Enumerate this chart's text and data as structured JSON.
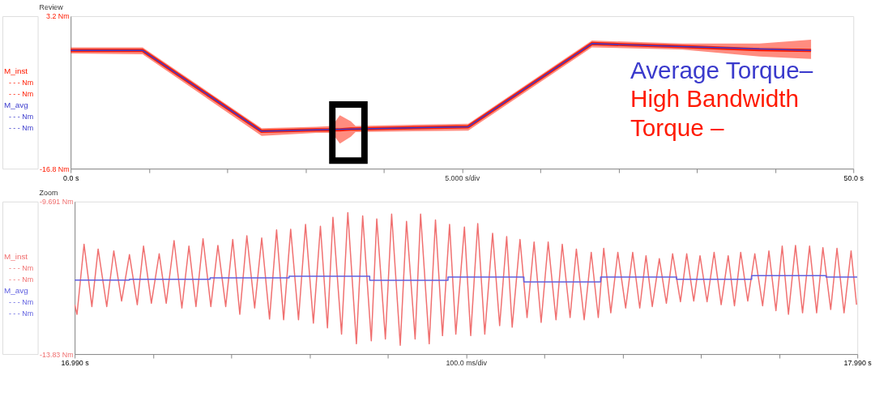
{
  "chart_data": [
    {
      "type": "line",
      "title": "Review",
      "legend": "left",
      "xlim": [
        0,
        50
      ],
      "ylim": [
        -16.8,
        3.2
      ],
      "xticks": [
        {
          "value": 0,
          "label": "0.0 s"
        },
        {
          "value": 5,
          "label": null
        },
        {
          "value": 10,
          "label": null
        },
        {
          "value": 15,
          "label": null
        },
        {
          "value": 20,
          "label": null
        },
        {
          "value": 25,
          "label": null
        },
        {
          "value": 30,
          "label": null
        },
        {
          "value": 35,
          "label": null
        },
        {
          "value": 40,
          "label": null
        },
        {
          "value": 45,
          "label": null
        },
        {
          "value": 50,
          "label": "50.0 s"
        }
      ],
      "yticks": [
        {
          "value": 3.2,
          "label": "3.2 Nm"
        },
        {
          "value": -16.8,
          "label": "-16.8 Nm"
        }
      ],
      "annotations": [
        "5.000 s/div",
        "- - - Nm",
        "- - - Nm",
        "- - - Nm",
        "- - - Nm",
        "Average Torque–",
        "High Bandwidth Torque –"
      ],
      "series": [
        {
          "name": "M_inst",
          "color": "#ff1a00",
          "x": [
            0,
            4.6,
            12.2,
            15.7,
            16.7,
            17.2,
            17.9,
            18.2,
            25.4,
            33.3,
            39.1,
            44.0,
            47.3
          ],
          "values": [
            -1.3,
            -1.3,
            -11.9,
            -11.7,
            -11.7,
            -11.7,
            -11.6,
            -11.6,
            -11.3,
            -0.4,
            -0.8,
            -1.2,
            -1.3
          ],
          "upper": [
            -0.9,
            -0.9,
            -11.5,
            -11.3,
            -11.2,
            -9.8,
            -10.6,
            -11.2,
            -10.9,
            0.0,
            -0.4,
            -0.4,
            0.1
          ],
          "lower": [
            -1.7,
            -1.8,
            -12.5,
            -12.1,
            -12.1,
            -13.5,
            -12.6,
            -12.0,
            -11.8,
            -0.9,
            -1.2,
            -2.1,
            -2.4
          ]
        },
        {
          "name": "M_avg",
          "color": "#3a3acc",
          "x": [
            0,
            4.6,
            12.2,
            15.7,
            25.4,
            33.3,
            39.1,
            47.3
          ],
          "values": [
            -1.3,
            -1.3,
            -11.9,
            -11.7,
            -11.3,
            -0.4,
            -0.8,
            -1.3
          ]
        }
      ]
    },
    {
      "type": "line",
      "title": "Zoom",
      "legend": "left",
      "xlim": [
        16.99,
        17.99
      ],
      "ylim": [
        -13.83,
        -9.691
      ],
      "xticks": [
        {
          "value": 16.99,
          "label": "16.990 s"
        },
        {
          "value": 17.09,
          "label": null
        },
        {
          "value": 17.19,
          "label": null
        },
        {
          "value": 17.29,
          "label": null
        },
        {
          "value": 17.39,
          "label": null
        },
        {
          "value": 17.49,
          "label": null
        },
        {
          "value": 17.59,
          "label": null
        },
        {
          "value": 17.69,
          "label": null
        },
        {
          "value": 17.79,
          "label": null
        },
        {
          "value": 17.89,
          "label": null
        },
        {
          "value": 17.99,
          "label": "17.990 s"
        }
      ],
      "yticks": [
        {
          "value": -9.691,
          "label": "-9.691 Nm"
        },
        {
          "value": -13.83,
          "label": "-13.83 Nm"
        }
      ],
      "annotations": [
        "100.0 ms/div",
        "- - - Nm",
        "- - - Nm",
        "- - - Nm",
        "- - - Nm"
      ],
      "series": [
        {
          "name": "M_inst",
          "color": "#f07070",
          "x": [
            16.99,
            16.993,
            17.002,
            17.012,
            17.02,
            17.031,
            17.04,
            17.05,
            17.06,
            17.07,
            17.078,
            17.088,
            17.098,
            17.107,
            17.117,
            17.127,
            17.136,
            17.145,
            17.154,
            17.164,
            17.173,
            17.183,
            17.192,
            17.201,
            17.21,
            17.22,
            17.229,
            17.239,
            17.248,
            17.257,
            17.266,
            17.276,
            17.285,
            17.295,
            17.304,
            17.313,
            17.32,
            17.331,
            17.339,
            17.35,
            17.358,
            17.369,
            17.376,
            17.387,
            17.395,
            17.406,
            17.414,
            17.425,
            17.432,
            17.443,
            17.451,
            17.46,
            17.469,
            17.477,
            17.488,
            17.496,
            17.505,
            17.514,
            17.524,
            17.533,
            17.542,
            17.549,
            17.559,
            17.568,
            17.577,
            17.586,
            17.595,
            17.605,
            17.613,
            17.623,
            17.631,
            17.641,
            17.65,
            17.659,
            17.666,
            17.675,
            17.684,
            17.694,
            17.703,
            17.712,
            17.72,
            17.728,
            17.737,
            17.746,
            17.754,
            17.764,
            17.772,
            17.781,
            17.789,
            17.798,
            17.807,
            17.816,
            17.825,
            17.833,
            17.841,
            17.85,
            17.859,
            17.869,
            17.877,
            17.886,
            17.894,
            17.902,
            17.911,
            17.92,
            17.929,
            17.938,
            17.946,
            17.956,
            17.964,
            17.973,
            17.982,
            17.989
          ],
          "values": [
            -12.49,
            -12.75,
            -10.85,
            -12.54,
            -10.98,
            -12.54,
            -11.03,
            -12.39,
            -11.13,
            -12.49,
            -10.9,
            -12.45,
            -11.11,
            -12.45,
            -10.75,
            -12.58,
            -10.9,
            -12.54,
            -10.7,
            -12.54,
            -10.88,
            -12.54,
            -10.72,
            -12.75,
            -10.62,
            -12.58,
            -10.68,
            -12.88,
            -10.46,
            -12.9,
            -10.44,
            -12.9,
            -10.31,
            -12.99,
            -10.36,
            -13.12,
            -10.12,
            -13.29,
            -9.99,
            -13.55,
            -10.08,
            -13.47,
            -10.16,
            -13.42,
            -10.03,
            -13.59,
            -10.23,
            -13.42,
            -10.03,
            -13.55,
            -10.19,
            -13.33,
            -10.31,
            -13.29,
            -10.38,
            -13.33,
            -10.29,
            -13.29,
            -10.55,
            -13.06,
            -10.64,
            -13.1,
            -10.72,
            -12.84,
            -10.79,
            -12.97,
            -10.79,
            -12.9,
            -10.85,
            -12.84,
            -10.98,
            -12.9,
            -11.07,
            -12.84,
            -10.96,
            -12.71,
            -11.07,
            -12.58,
            -11.07,
            -12.58,
            -11.16,
            -12.54,
            -11.24,
            -12.45,
            -11.11,
            -12.41,
            -11.11,
            -12.39,
            -11.16,
            -12.41,
            -11.07,
            -12.49,
            -11.16,
            -12.52,
            -11.07,
            -12.39,
            -11.11,
            -12.52,
            -11.03,
            -12.65,
            -10.9,
            -12.75,
            -10.88,
            -12.71,
            -10.9,
            -12.71,
            -10.94,
            -12.62,
            -10.96,
            -12.71,
            -11.03,
            -12.49
          ]
        },
        {
          "name": "M_avg",
          "type": "step",
          "color": "#6060e0",
          "x": [
            16.99,
            17.06,
            17.163,
            17.264,
            17.367,
            17.467,
            17.564,
            17.662,
            17.759,
            17.855,
            17.95,
            17.99
          ],
          "values": [
            -11.82,
            -11.8,
            -11.76,
            -11.72,
            -11.83,
            -11.74,
            -11.87,
            -11.74,
            -11.8,
            -11.7,
            -11.74,
            -11.74
          ]
        }
      ]
    }
  ]
}
